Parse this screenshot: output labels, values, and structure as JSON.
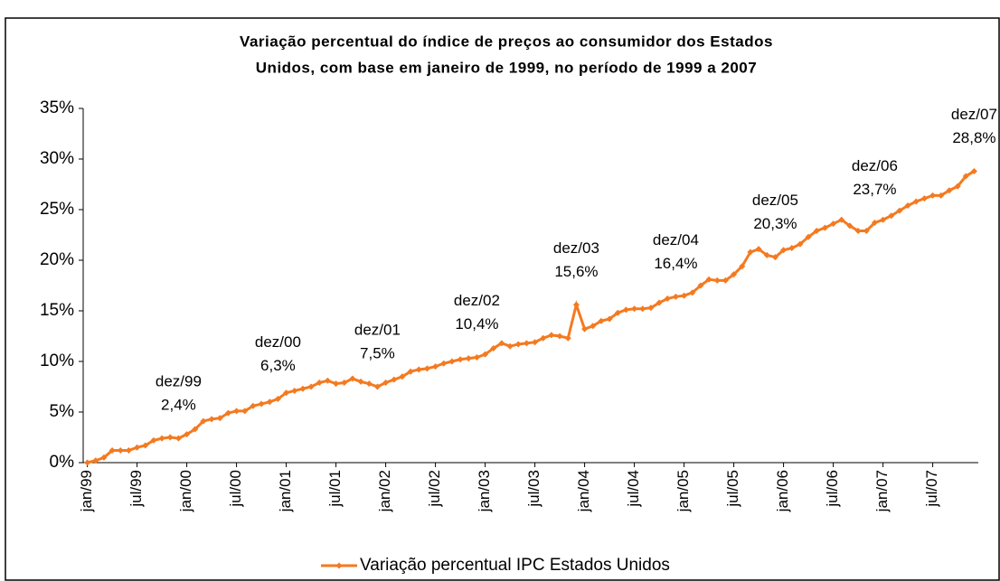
{
  "chart_data": {
    "type": "line",
    "title_lines": [
      "Variação percentual do índice de preços ao consumidor dos Estados",
      "Unidos, com base em janeiro de 1999, no período de 1999 a 2007"
    ],
    "categories": [
      "jan/99",
      null,
      null,
      null,
      null,
      null,
      "jul/99",
      null,
      null,
      null,
      null,
      null,
      "jan/00",
      null,
      null,
      null,
      null,
      null,
      "jul/00",
      null,
      null,
      null,
      null,
      null,
      "jan/01",
      null,
      null,
      null,
      null,
      null,
      "jul/01",
      null,
      null,
      null,
      null,
      null,
      "jan/02",
      null,
      null,
      null,
      null,
      null,
      "jul/02",
      null,
      null,
      null,
      null,
      null,
      "jan/03",
      null,
      null,
      null,
      null,
      null,
      "jul/03",
      null,
      null,
      null,
      null,
      null,
      "jan/04",
      null,
      null,
      null,
      null,
      null,
      "jul/04",
      null,
      null,
      null,
      null,
      null,
      "jan/05",
      null,
      null,
      null,
      null,
      null,
      "jul/05",
      null,
      null,
      null,
      null,
      null,
      "jan/06",
      null,
      null,
      null,
      null,
      null,
      "jul/06",
      null,
      null,
      null,
      null,
      null,
      "jan/07",
      null,
      null,
      null,
      null,
      null,
      "jul/07",
      null,
      null,
      null,
      null,
      null
    ],
    "series": [
      {
        "name": "Variação percentual IPC Estados Unidos",
        "color": "#f47a20",
        "values": [
          0,
          0.2,
          0.5,
          1.2,
          1.2,
          1.2,
          1.5,
          1.7,
          2.2,
          2.4,
          2.5,
          2.4,
          2.8,
          3.3,
          4.1,
          4.3,
          4.4,
          4.9,
          5.1,
          5.1,
          5.6,
          5.8,
          6.0,
          6.3,
          6.9,
          7.1,
          7.3,
          7.5,
          7.9,
          8.1,
          7.8,
          7.9,
          8.3,
          8.0,
          7.8,
          7.5,
          7.9,
          8.2,
          8.5,
          9.0,
          9.2,
          9.3,
          9.5,
          9.8,
          10.0,
          10.2,
          10.3,
          10.4,
          10.7,
          11.3,
          11.8,
          11.5,
          11.7,
          11.8,
          11.9,
          12.3,
          12.6,
          12.5,
          12.3,
          15.6,
          13.2,
          13.5,
          14.0,
          14.2,
          14.8,
          15.1,
          15.2,
          15.2,
          15.3,
          15.8,
          16.2,
          16.4,
          16.5,
          16.8,
          17.5,
          18.1,
          18.0,
          18.0,
          18.6,
          19.4,
          20.8,
          21.1,
          20.5,
          20.3,
          21.0,
          21.2,
          21.6,
          22.3,
          22.9,
          23.2,
          23.6,
          24.0,
          23.4,
          22.9,
          22.9,
          23.7,
          24.0,
          24.4,
          24.9,
          25.4,
          25.8,
          26.1,
          26.4,
          26.4,
          26.9,
          27.3,
          28.3,
          28.8
        ]
      }
    ],
    "annotations": [
      {
        "text": "dez/99",
        "label": "2,4%",
        "value": 2.4
      },
      {
        "text": "dez/00",
        "label": "6,3%",
        "value": 6.3
      },
      {
        "text": "dez/01",
        "label": "7,5%",
        "value": 7.5
      },
      {
        "text": "dez/02",
        "label": "10,4%",
        "value": 10.4
      },
      {
        "text": "dez/03",
        "label": "15,6%",
        "value": 15.6
      },
      {
        "text": "dez/04",
        "label": "16,4%",
        "value": 16.4
      },
      {
        "text": "dez/05",
        "label": "20,3%",
        "value": 20.3
      },
      {
        "text": "dez/06",
        "label": "23,7%",
        "value": 23.7
      },
      {
        "text": "dez/07",
        "label": "28,8%",
        "value": 28.8
      }
    ],
    "ylim": [
      0,
      35
    ],
    "yticks": [
      {
        "value": 0,
        "label": "0%"
      },
      {
        "value": 5,
        "label": "5%"
      },
      {
        "value": 10,
        "label": "10%"
      },
      {
        "value": 15,
        "label": "15%"
      },
      {
        "value": 20,
        "label": "20%"
      },
      {
        "value": 25,
        "label": "25%"
      },
      {
        "value": 30,
        "label": "30%"
      },
      {
        "value": 35,
        "label": "35%"
      }
    ],
    "legend": "bottom"
  }
}
